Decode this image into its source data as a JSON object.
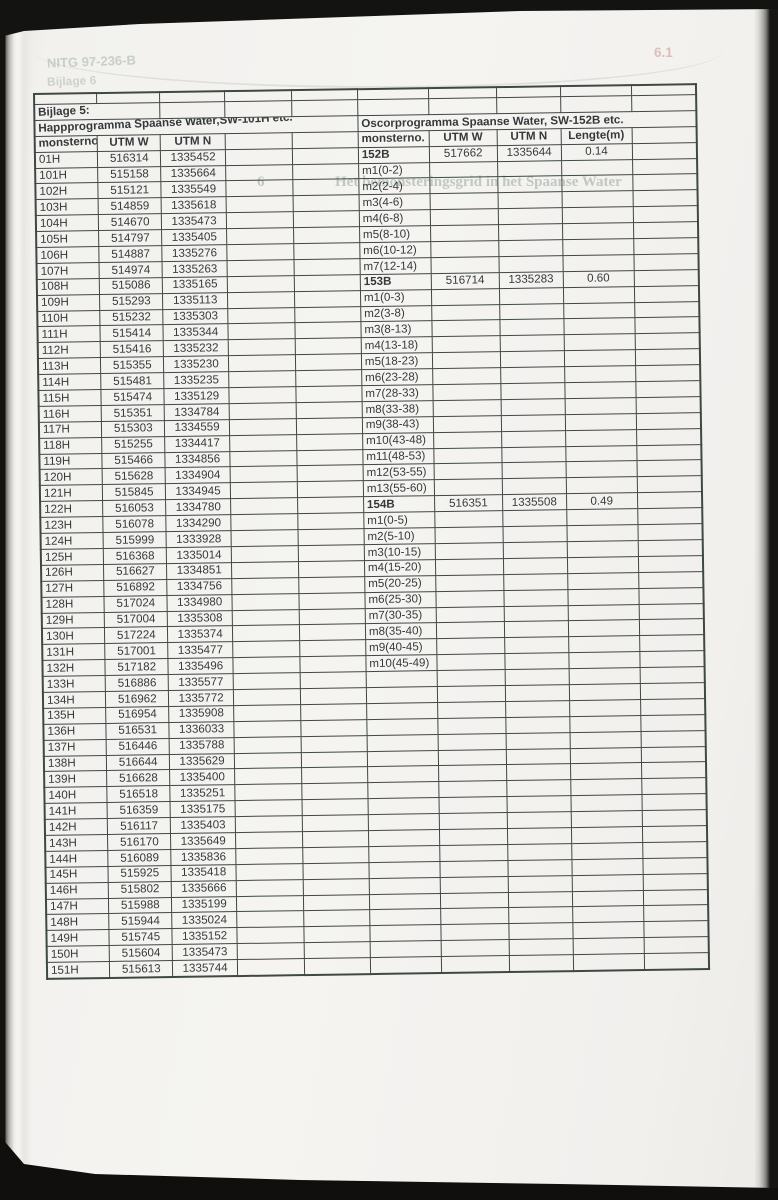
{
  "page": {
    "bijlage_label": "Bijlage 5:",
    "ghosts": {
      "report_code": "NITG 97-236-B",
      "bijlage_next": "Bijlage 6",
      "page_number": "6.1",
      "chapter_number": "6",
      "chapter_title": "Het bemonsteringsgrid in het Spaanse Water"
    },
    "colors": {
      "table_border": "#3f4843",
      "page_background": "#f3f2ef",
      "ghost_text": "#7a8c85",
      "ghost_page_number": "#ba7668"
    }
  },
  "left_table": {
    "title": "Happprogramma Spaanse Water,SW-101H etc.",
    "columns": [
      "monsterno.",
      "UTM W",
      "UTM N"
    ],
    "rows": [
      {
        "no": "01H",
        "w": "516314",
        "n": "1335452"
      },
      {
        "no": "101H",
        "w": "515158",
        "n": "1335664"
      },
      {
        "no": "102H",
        "w": "515121",
        "n": "1335549"
      },
      {
        "no": "103H",
        "w": "514859",
        "n": "1335618"
      },
      {
        "no": "104H",
        "w": "514670",
        "n": "1335473"
      },
      {
        "no": "105H",
        "w": "514797",
        "n": "1335405"
      },
      {
        "no": "106H",
        "w": "514887",
        "n": "1335276"
      },
      {
        "no": "107H",
        "w": "514974",
        "n": "1335263"
      },
      {
        "no": "108H",
        "w": "515086",
        "n": "1335165"
      },
      {
        "no": "109H",
        "w": "515293",
        "n": "1335113"
      },
      {
        "no": "110H",
        "w": "515232",
        "n": "1335303"
      },
      {
        "no": "111H",
        "w": "515414",
        "n": "1335344"
      },
      {
        "no": "112H",
        "w": "515416",
        "n": "1335232"
      },
      {
        "no": "113H",
        "w": "515355",
        "n": "1335230"
      },
      {
        "no": "114H",
        "w": "515481",
        "n": "1335235"
      },
      {
        "no": "115H",
        "w": "515474",
        "n": "1335129"
      },
      {
        "no": "116H",
        "w": "515351",
        "n": "1334784"
      },
      {
        "no": "117H",
        "w": "515303",
        "n": "1334559"
      },
      {
        "no": "118H",
        "w": "515255",
        "n": "1334417"
      },
      {
        "no": "119H",
        "w": "515466",
        "n": "1334856"
      },
      {
        "no": "120H",
        "w": "515628",
        "n": "1334904"
      },
      {
        "no": "121H",
        "w": "515845",
        "n": "1334945"
      },
      {
        "no": "122H",
        "w": "516053",
        "n": "1334780"
      },
      {
        "no": "123H",
        "w": "516078",
        "n": "1334290"
      },
      {
        "no": "124H",
        "w": "515999",
        "n": "1333928"
      },
      {
        "no": "125H",
        "w": "516368",
        "n": "1335014"
      },
      {
        "no": "126H",
        "w": "516627",
        "n": "1334851"
      },
      {
        "no": "127H",
        "w": "516892",
        "n": "1334756"
      },
      {
        "no": "128H",
        "w": "517024",
        "n": "1334980"
      },
      {
        "no": "129H",
        "w": "517004",
        "n": "1335308"
      },
      {
        "no": "130H",
        "w": "517224",
        "n": "1335374"
      },
      {
        "no": "131H",
        "w": "517001",
        "n": "1335477"
      },
      {
        "no": "132H",
        "w": "517182",
        "n": "1335496"
      },
      {
        "no": "133H",
        "w": "516886",
        "n": "1335577"
      },
      {
        "no": "134H",
        "w": "516962",
        "n": "1335772"
      },
      {
        "no": "135H",
        "w": "516954",
        "n": "1335908"
      },
      {
        "no": "136H",
        "w": "516531",
        "n": "1336033"
      },
      {
        "no": "137H",
        "w": "516446",
        "n": "1335788"
      },
      {
        "no": "138H",
        "w": "516644",
        "n": "1335629"
      },
      {
        "no": "139H",
        "w": "516628",
        "n": "1335400"
      },
      {
        "no": "140H",
        "w": "516518",
        "n": "1335251"
      },
      {
        "no": "141H",
        "w": "516359",
        "n": "1335175"
      },
      {
        "no": "142H",
        "w": "516117",
        "n": "1335403"
      },
      {
        "no": "143H",
        "w": "516170",
        "n": "1335649"
      },
      {
        "no": "144H",
        "w": "516089",
        "n": "1335836"
      },
      {
        "no": "145H",
        "w": "515925",
        "n": "1335418"
      },
      {
        "no": "146H",
        "w": "515802",
        "n": "1335666"
      },
      {
        "no": "147H",
        "w": "515988",
        "n": "1335199"
      },
      {
        "no": "148H",
        "w": "515944",
        "n": "1335024"
      },
      {
        "no": "149H",
        "w": "515745",
        "n": "1335152"
      },
      {
        "no": "150H",
        "w": "515604",
        "n": "1335473"
      },
      {
        "no": "151H",
        "w": "515613",
        "n": "1335744"
      }
    ]
  },
  "right_table": {
    "title": "Oscorprogramma Spaanse Water, SW-152B etc.",
    "columns": [
      "monsterno.",
      "UTM W",
      "UTM N",
      "Lengte(m)"
    ],
    "rows": [
      {
        "no": "152B",
        "w": "517662",
        "n": "1335644",
        "len": "0.14",
        "bold": true
      },
      {
        "no": "m1(0-2)"
      },
      {
        "no": "m2(2-4)"
      },
      {
        "no": "m3(4-6)"
      },
      {
        "no": "m4(6-8)"
      },
      {
        "no": "m5(8-10)"
      },
      {
        "no": "m6(10-12)"
      },
      {
        "no": "m7(12-14)"
      },
      {
        "no": "153B",
        "w": "516714",
        "n": "1335283",
        "len": "0.60",
        "bold": true
      },
      {
        "no": "m1(0-3)"
      },
      {
        "no": "m2(3-8)"
      },
      {
        "no": "m3(8-13)"
      },
      {
        "no": "m4(13-18)"
      },
      {
        "no": "m5(18-23)"
      },
      {
        "no": "m6(23-28)"
      },
      {
        "no": "m7(28-33)"
      },
      {
        "no": "m8(33-38)"
      },
      {
        "no": "m9(38-43)"
      },
      {
        "no": "m10(43-48)"
      },
      {
        "no": "m11(48-53)"
      },
      {
        "no": "m12(53-55)"
      },
      {
        "no": "m13(55-60)"
      },
      {
        "no": "154B",
        "w": "516351",
        "n": "1335508",
        "len": "0.49",
        "bold": true
      },
      {
        "no": "m1(0-5)"
      },
      {
        "no": "m2(5-10)"
      },
      {
        "no": "m3(10-15)"
      },
      {
        "no": "m4(15-20)"
      },
      {
        "no": "m5(20-25)"
      },
      {
        "no": "m6(25-30)"
      },
      {
        "no": "m7(30-35)"
      },
      {
        "no": "m8(35-40)"
      },
      {
        "no": "m9(40-45)"
      },
      {
        "no": "m10(45-49)"
      }
    ],
    "trailing_empty_rows": 19
  }
}
